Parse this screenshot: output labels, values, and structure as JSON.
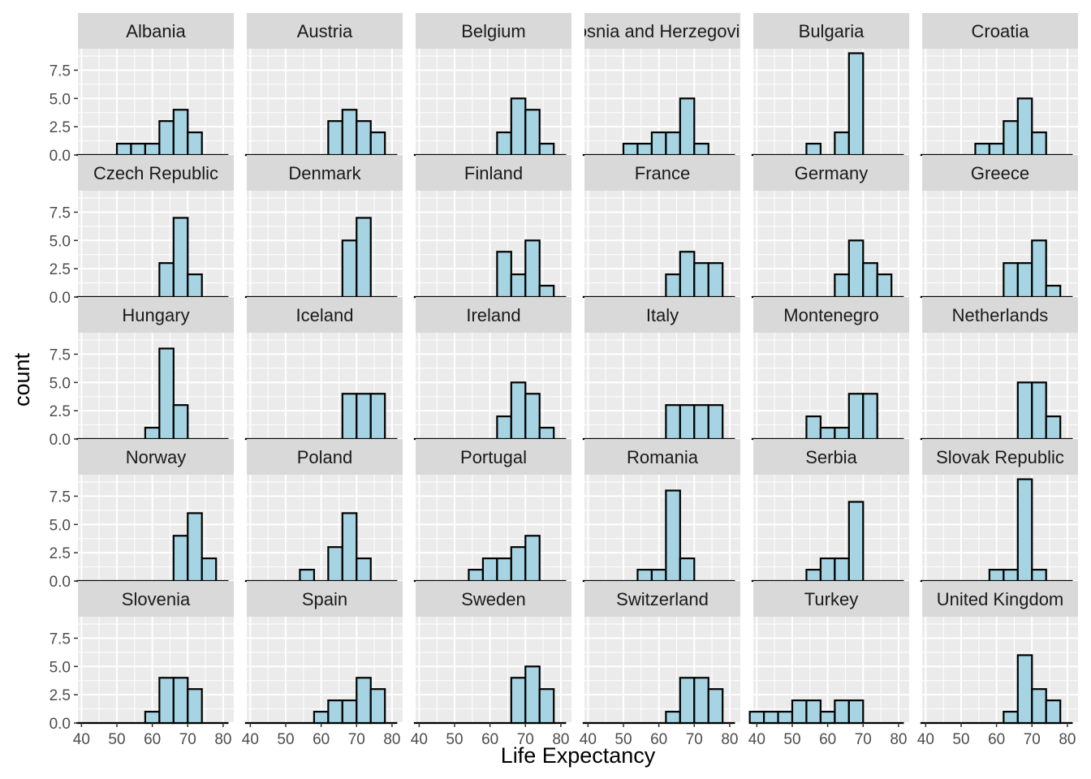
{
  "chart_data": {
    "type": "histogram",
    "layout": "facet_wrap",
    "xlabel": "Life Expectancy",
    "ylabel": "count",
    "xlim": [
      39,
      83
    ],
    "ylim": [
      0,
      9.4
    ],
    "x_ticks": [
      40,
      50,
      60,
      70,
      80
    ],
    "y_ticks": [
      0,
      2.5,
      5,
      7.5
    ],
    "y_tick_labels": [
      "0.0",
      "2.5",
      "5.0",
      "7.5"
    ],
    "bin_width": 4,
    "bin_edges": [
      40,
      44,
      48,
      52,
      56,
      60,
      64,
      68,
      72,
      76,
      80,
      84
    ],
    "bar_fill": "#a6d4e3",
    "bar_outline": "#000000",
    "panel_background": "#ebebeb",
    "strip_background": "#d9d9d9",
    "grid": true,
    "facets": [
      {
        "name": "Albania",
        "counts": [
          0,
          0,
          0,
          1,
          1,
          1,
          3,
          4,
          2,
          0,
          0
        ]
      },
      {
        "name": "Austria",
        "counts": [
          0,
          0,
          0,
          0,
          0,
          0,
          3,
          4,
          3,
          2,
          0
        ]
      },
      {
        "name": "Belgium",
        "counts": [
          0,
          0,
          0,
          0,
          0,
          0,
          2,
          5,
          4,
          1,
          0
        ]
      },
      {
        "name": "Bosnia and Herzegovina",
        "counts": [
          0,
          0,
          0,
          1,
          1,
          2,
          2,
          5,
          1,
          0,
          0
        ]
      },
      {
        "name": "Bulgaria",
        "counts": [
          0,
          0,
          0,
          0,
          1,
          0,
          2,
          9,
          0,
          0,
          0
        ]
      },
      {
        "name": "Croatia",
        "counts": [
          0,
          0,
          0,
          0,
          1,
          1,
          3,
          5,
          2,
          0,
          0
        ]
      },
      {
        "name": "Czech Republic",
        "counts": [
          0,
          0,
          0,
          0,
          0,
          0,
          3,
          7,
          2,
          0,
          0
        ]
      },
      {
        "name": "Denmark",
        "counts": [
          0,
          0,
          0,
          0,
          0,
          0,
          0,
          5,
          7,
          0,
          0
        ]
      },
      {
        "name": "Finland",
        "counts": [
          0,
          0,
          0,
          0,
          0,
          0,
          4,
          2,
          5,
          1,
          0
        ]
      },
      {
        "name": "France",
        "counts": [
          0,
          0,
          0,
          0,
          0,
          0,
          2,
          4,
          3,
          3,
          0
        ]
      },
      {
        "name": "Germany",
        "counts": [
          0,
          0,
          0,
          0,
          0,
          0,
          2,
          5,
          3,
          2,
          0
        ]
      },
      {
        "name": "Greece",
        "counts": [
          0,
          0,
          0,
          0,
          0,
          0,
          3,
          3,
          5,
          1,
          0
        ]
      },
      {
        "name": "Hungary",
        "counts": [
          0,
          0,
          0,
          0,
          0,
          1,
          8,
          3,
          0,
          0,
          0
        ]
      },
      {
        "name": "Iceland",
        "counts": [
          0,
          0,
          0,
          0,
          0,
          0,
          0,
          4,
          4,
          4,
          0
        ]
      },
      {
        "name": "Ireland",
        "counts": [
          0,
          0,
          0,
          0,
          0,
          0,
          2,
          5,
          4,
          1,
          0
        ]
      },
      {
        "name": "Italy",
        "counts": [
          0,
          0,
          0,
          0,
          0,
          0,
          3,
          3,
          3,
          3,
          0
        ]
      },
      {
        "name": "Montenegro",
        "counts": [
          0,
          0,
          0,
          0,
          2,
          1,
          1,
          4,
          4,
          0,
          0
        ]
      },
      {
        "name": "Netherlands",
        "counts": [
          0,
          0,
          0,
          0,
          0,
          0,
          0,
          5,
          5,
          2,
          0
        ]
      },
      {
        "name": "Norway",
        "counts": [
          0,
          0,
          0,
          0,
          0,
          0,
          0,
          4,
          6,
          2,
          0
        ]
      },
      {
        "name": "Poland",
        "counts": [
          0,
          0,
          0,
          0,
          1,
          0,
          3,
          6,
          2,
          0,
          0
        ]
      },
      {
        "name": "Portugal",
        "counts": [
          0,
          0,
          0,
          0,
          1,
          2,
          2,
          3,
          4,
          0,
          0
        ]
      },
      {
        "name": "Romania",
        "counts": [
          0,
          0,
          0,
          0,
          1,
          1,
          8,
          2,
          0,
          0,
          0
        ]
      },
      {
        "name": "Serbia",
        "counts": [
          0,
          0,
          0,
          0,
          1,
          2,
          2,
          7,
          0,
          0,
          0
        ]
      },
      {
        "name": "Slovak Republic",
        "counts": [
          0,
          0,
          0,
          0,
          0,
          1,
          1,
          9,
          1,
          0,
          0
        ]
      },
      {
        "name": "Slovenia",
        "counts": [
          0,
          0,
          0,
          0,
          0,
          1,
          4,
          4,
          3,
          0,
          0
        ]
      },
      {
        "name": "Spain",
        "counts": [
          0,
          0,
          0,
          0,
          0,
          1,
          2,
          2,
          4,
          3,
          0
        ]
      },
      {
        "name": "Sweden",
        "counts": [
          0,
          0,
          0,
          0,
          0,
          0,
          0,
          4,
          5,
          3,
          0
        ]
      },
      {
        "name": "Switzerland",
        "counts": [
          0,
          0,
          0,
          0,
          0,
          0,
          1,
          4,
          4,
          3,
          0
        ]
      },
      {
        "name": "Turkey",
        "counts": [
          1,
          1,
          1,
          2,
          2,
          1,
          2,
          2,
          0,
          0,
          0
        ]
      },
      {
        "name": "United Kingdom",
        "counts": [
          0,
          0,
          0,
          0,
          0,
          0,
          1,
          6,
          3,
          2,
          0
        ]
      }
    ]
  }
}
